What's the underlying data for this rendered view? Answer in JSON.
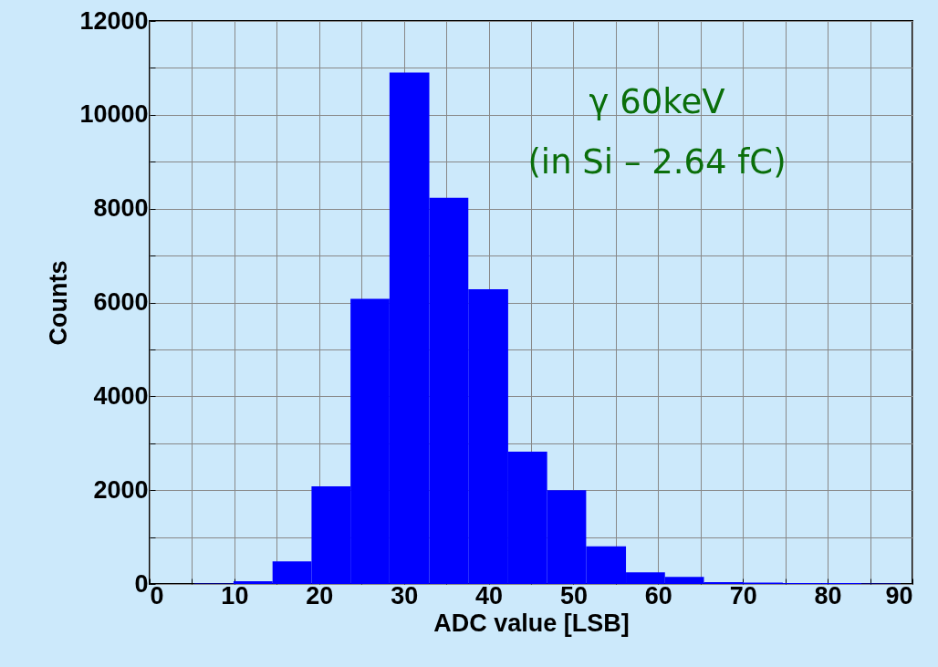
{
  "chart_data": {
    "type": "histogram",
    "xlabel": "ADC value [LSB]",
    "ylabel": "Counts",
    "annotations": [
      "γ 60keV",
      "(in Si – 2.64 fC)"
    ],
    "bins": [
      0.6,
      5.25,
      9.9,
      14.5,
      19.1,
      23.7,
      28.3,
      33.0,
      37.6,
      42.3,
      46.9,
      51.5,
      56.2,
      60.8,
      65.4,
      70.1,
      74.7,
      79.3,
      84.0,
      88.6
    ],
    "values": [
      0,
      10,
      60,
      480,
      2080,
      6080,
      10900,
      8230,
      6280,
      2820,
      2000,
      800,
      250,
      150,
      40,
      30,
      20,
      20,
      10
    ],
    "color": "#0000ff",
    "xlim": [
      0,
      90
    ],
    "ylim": [
      0,
      12000
    ],
    "xticks": [
      0,
      {
        "value": 5,
        "label": null
      },
      10,
      {
        "value": 15,
        "label": null
      },
      20,
      {
        "value": 25,
        "label": null
      },
      30,
      {
        "value": 35,
        "label": null
      },
      40,
      {
        "value": 45,
        "label": null
      },
      50,
      {
        "value": 55,
        "label": null
      },
      60,
      {
        "value": 65,
        "label": null
      },
      70,
      {
        "value": 75,
        "label": null
      },
      80,
      {
        "value": 85,
        "label": null
      },
      90
    ],
    "yticks": [
      0,
      {
        "value": 1000,
        "label": null
      },
      2000,
      {
        "value": 3000,
        "label": null
      },
      4000,
      {
        "value": 5000,
        "label": null
      },
      6000,
      {
        "value": 7000,
        "label": null
      },
      8000,
      {
        "value": 9000,
        "label": null
      },
      10000,
      {
        "value": 11000,
        "label": null
      },
      12000
    ],
    "grid": true
  }
}
